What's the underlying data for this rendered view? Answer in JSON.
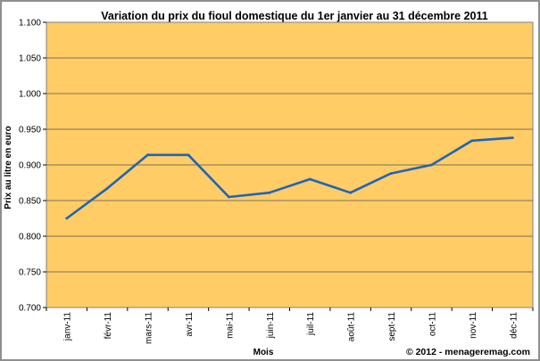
{
  "chart_data": {
    "type": "line",
    "title": "Variation du prix du fioul domestique du 1er janvier au 31 décembre 2011",
    "xlabel": "Mois",
    "ylabel": "Prix au litre en euro",
    "credit": "© 2012 - menageremag.com",
    "categories": [
      "janv-11",
      "févr-11",
      "mars-11",
      "avr-11",
      "mai-11",
      "juin-11",
      "juil-11",
      "août-11",
      "sept-11",
      "oct-11",
      "nov-11",
      "déc-11"
    ],
    "series": [
      {
        "values": [
          0.825,
          0.867,
          0.914,
          0.914,
          0.855,
          0.861,
          0.88,
          0.861,
          0.888,
          0.9,
          0.934,
          0.938
        ]
      }
    ],
    "yticks": [
      "0.700",
      "0.750",
      "0.800",
      "0.850",
      "0.900",
      "0.950",
      "1.000",
      "1.050",
      "1.100"
    ],
    "ylim": [
      0.7,
      1.1
    ],
    "grid": true,
    "legend": "none",
    "colors": {
      "plot_background": "#ffcc66",
      "line": "#1f64b8",
      "grid": "#555555"
    }
  }
}
